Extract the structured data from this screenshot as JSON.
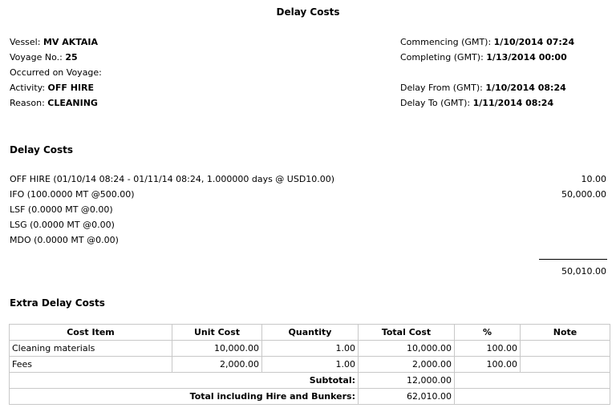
{
  "title": "Delay Costs",
  "info_left": [
    {
      "label": "Vessel: ",
      "value": "MV AKTAIA"
    },
    {
      "label": "Voyage No.: ",
      "value": "25"
    },
    {
      "label": "Occurred on Voyage:",
      "value": ""
    },
    {
      "label": "Activity: ",
      "value": "OFF HIRE"
    },
    {
      "label": "Reason: ",
      "value": "CLEANING"
    }
  ],
  "info_right": [
    {
      "label": "Commencing (GMT): ",
      "value": "1/10/2014 07:24"
    },
    {
      "label": "Completing (GMT): ",
      "value": "1/13/2014 00:00"
    },
    {
      "label": "Delay From (GMT): ",
      "value": "1/10/2014 08:24"
    },
    {
      "label": "Delay To (GMT): ",
      "value": "1/11/2014 08:24"
    }
  ],
  "delay_costs": {
    "heading": "Delay Costs",
    "lines": [
      {
        "desc": "OFF HIRE (01/10/14 08:24 - 01/11/14 08:24, 1.000000 days @ USD10.00)",
        "amount": "10.00"
      },
      {
        "desc": "IFO (100.0000 MT @500.00)",
        "amount": "50,000.00"
      },
      {
        "desc": "LSF (0.0000 MT @0.00)",
        "amount": ""
      },
      {
        "desc": "LSG (0.0000 MT @0.00)",
        "amount": ""
      },
      {
        "desc": "MDO (0.0000 MT @0.00)",
        "amount": ""
      }
    ],
    "total": "50,010.00"
  },
  "extra": {
    "heading": "Extra Delay Costs",
    "columns": [
      "Cost Item",
      "Unit Cost",
      "Quantity",
      "Total Cost",
      "%",
      "Note"
    ],
    "rows": [
      [
        "Cleaning materials",
        "10,000.00",
        "1.00",
        "10,000.00",
        "100.00",
        ""
      ],
      [
        "Fees",
        "2,000.00",
        "1.00",
        "2,000.00",
        "100.00",
        ""
      ]
    ],
    "subtotal_label": "Subtotal:",
    "subtotal": "12,000.00",
    "grand_label": "Total including Hire and Bunkers:",
    "grand": "62,010.00"
  }
}
